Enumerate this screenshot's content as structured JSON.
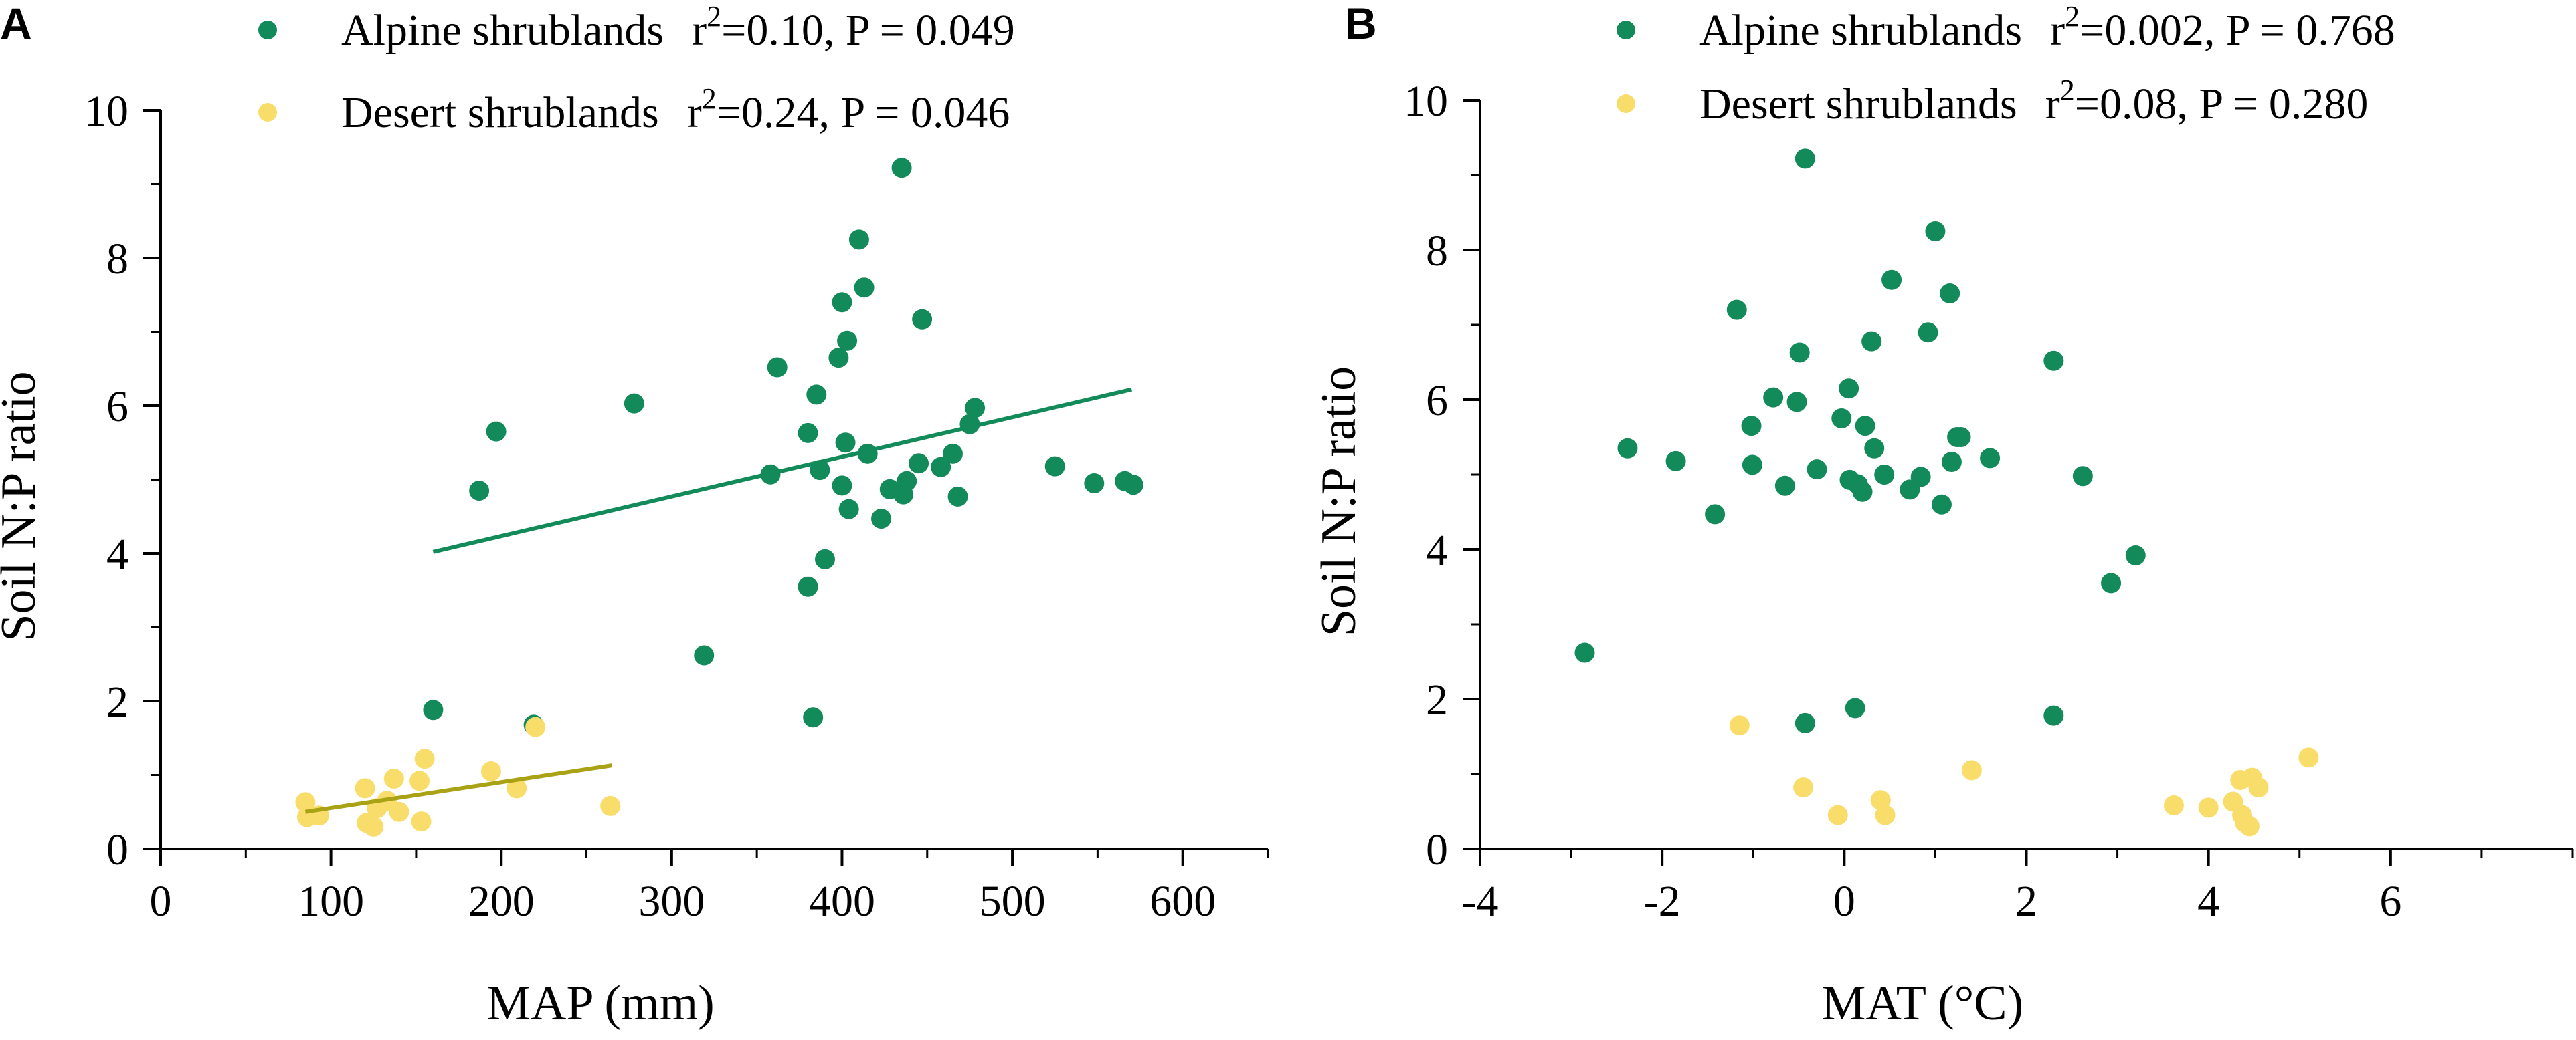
{
  "chart_data": [
    {
      "type": "scatter",
      "panel_label": "A",
      "xlabel": "MAP (mm)",
      "ylabel": "Soil N:P ratio",
      "xlim": [
        0,
        650
      ],
      "ylim": [
        0,
        10
      ],
      "xticks": [
        0,
        100,
        200,
        300,
        400,
        500,
        600
      ],
      "yticks": [
        0,
        2,
        4,
        6,
        8,
        10
      ],
      "grid": false,
      "legend_position": "top-left",
      "series": [
        {
          "name": "Alpine shrublands",
          "stat_lead": "r",
          "stat_exp": "2",
          "stat_rest": "=0.10, P = 0.049",
          "color": "#138a5a",
          "points": [
            [
              160,
              1.88
            ],
            [
              187,
              4.85
            ],
            [
              197,
              5.65
            ],
            [
              219,
              1.68
            ],
            [
              278,
              6.03
            ],
            [
              319,
              2.62
            ],
            [
              358,
              5.07
            ],
            [
              362,
              6.52
            ],
            [
              380,
              3.55
            ],
            [
              380,
              5.63
            ],
            [
              383,
              1.78
            ],
            [
              385,
              6.15
            ],
            [
              387,
              5.13
            ],
            [
              390,
              3.92
            ],
            [
              398,
              6.65
            ],
            [
              400,
              7.4
            ],
            [
              400,
              4.92
            ],
            [
              402,
              5.5
            ],
            [
              403,
              6.88
            ],
            [
              404,
              4.6
            ],
            [
              410,
              8.25
            ],
            [
              413,
              7.6
            ],
            [
              415,
              5.35
            ],
            [
              423,
              4.47
            ],
            [
              428,
              4.87
            ],
            [
              435,
              9.22
            ],
            [
              436,
              4.8
            ],
            [
              438,
              4.98
            ],
            [
              445,
              5.22
            ],
            [
              447,
              7.17
            ],
            [
              458,
              5.17
            ],
            [
              465,
              5.35
            ],
            [
              468,
              4.77
            ],
            [
              475,
              5.75
            ],
            [
              478,
              5.97
            ],
            [
              525,
              5.18
            ],
            [
              548,
              4.95
            ],
            [
              566,
              4.98
            ],
            [
              571,
              4.93
            ]
          ],
          "fit": [
            [
              160,
              4.02
            ],
            [
              570,
              6.22
            ]
          ]
        },
        {
          "name": "Desert shrublands",
          "stat_lead": "r",
          "stat_exp": "2",
          "stat_rest": "=0.24, P = 0.046",
          "color": "#f9dd6b",
          "fit_color": "#a8a214",
          "points": [
            [
              85,
              0.63
            ],
            [
              86,
              0.43
            ],
            [
              93,
              0.45
            ],
            [
              120,
              0.82
            ],
            [
              121,
              0.35
            ],
            [
              125,
              0.3
            ],
            [
              127,
              0.55
            ],
            [
              133,
              0.65
            ],
            [
              137,
              0.95
            ],
            [
              140,
              0.5
            ],
            [
              152,
              0.92
            ],
            [
              153,
              0.37
            ],
            [
              155,
              1.22
            ],
            [
              194,
              1.05
            ],
            [
              209,
              0.82
            ],
            [
              220,
              1.65
            ],
            [
              264,
              0.58
            ]
          ],
          "fit": [
            [
              85,
              0.5
            ],
            [
              265,
              1.13
            ]
          ]
        }
      ]
    },
    {
      "type": "scatter",
      "panel_label": "B",
      "xlabel": "MAT (°C)",
      "ylabel": "Soil N:P ratio",
      "xlim": [
        -4,
        8
      ],
      "ylim": [
        0,
        10
      ],
      "xticks": [
        -4,
        -2,
        0,
        2,
        4,
        6
      ],
      "grid": false,
      "legend_position": "top-left",
      "series": [
        {
          "name": "Alpine shrublands",
          "stat_lead": "r",
          "stat_exp": "2",
          "stat_rest": "=0.002, P = 0.768",
          "color": "#138a5a",
          "points": [
            [
              -2.85,
              2.62
            ],
            [
              -2.38,
              5.35
            ],
            [
              -1.85,
              5.18
            ],
            [
              -1.42,
              4.47
            ],
            [
              -1.18,
              7.2
            ],
            [
              -1.02,
              5.65
            ],
            [
              -1.01,
              5.13
            ],
            [
              -0.78,
              6.03
            ],
            [
              -0.65,
              4.85
            ],
            [
              -0.52,
              5.97
            ],
            [
              -0.49,
              6.63
            ],
            [
              -0.43,
              9.22
            ],
            [
              -0.43,
              1.68
            ],
            [
              -0.3,
              5.07
            ],
            [
              -0.03,
              5.75
            ],
            [
              0.05,
              6.15
            ],
            [
              0.06,
              4.93
            ],
            [
              0.12,
              1.88
            ],
            [
              0.15,
              4.87
            ],
            [
              0.2,
              4.77
            ],
            [
              0.23,
              5.65
            ],
            [
              0.3,
              6.78
            ],
            [
              0.33,
              5.35
            ],
            [
              0.44,
              5.0
            ],
            [
              0.52,
              7.6
            ],
            [
              0.72,
              4.8
            ],
            [
              0.84,
              4.97
            ],
            [
              0.92,
              6.9
            ],
            [
              1.0,
              8.25
            ],
            [
              1.07,
              4.6
            ],
            [
              1.16,
              7.42
            ],
            [
              1.18,
              5.17
            ],
            [
              1.24,
              5.5
            ],
            [
              1.28,
              5.5
            ],
            [
              1.6,
              5.22
            ],
            [
              2.3,
              6.52
            ],
            [
              2.3,
              1.78
            ],
            [
              2.62,
              4.98
            ],
            [
              2.93,
              3.55
            ],
            [
              3.2,
              3.92
            ]
          ]
        },
        {
          "name": "Desert shrublands",
          "stat_lead": "r",
          "stat_exp": "2",
          "stat_rest": "=0.08,   P = 0.280",
          "color": "#f9dd6b",
          "points": [
            [
              -1.15,
              1.65
            ],
            [
              -0.45,
              0.82
            ],
            [
              -0.07,
              0.45
            ],
            [
              0.4,
              0.65
            ],
            [
              0.45,
              0.45
            ],
            [
              1.4,
              1.05
            ],
            [
              3.62,
              0.58
            ],
            [
              4.0,
              0.55
            ],
            [
              4.27,
              0.63
            ],
            [
              4.35,
              0.92
            ],
            [
              4.37,
              0.45
            ],
            [
              4.4,
              0.35
            ],
            [
              4.45,
              0.3
            ],
            [
              4.48,
              0.95
            ],
            [
              4.55,
              0.82
            ],
            [
              5.1,
              1.22
            ]
          ]
        }
      ]
    }
  ]
}
